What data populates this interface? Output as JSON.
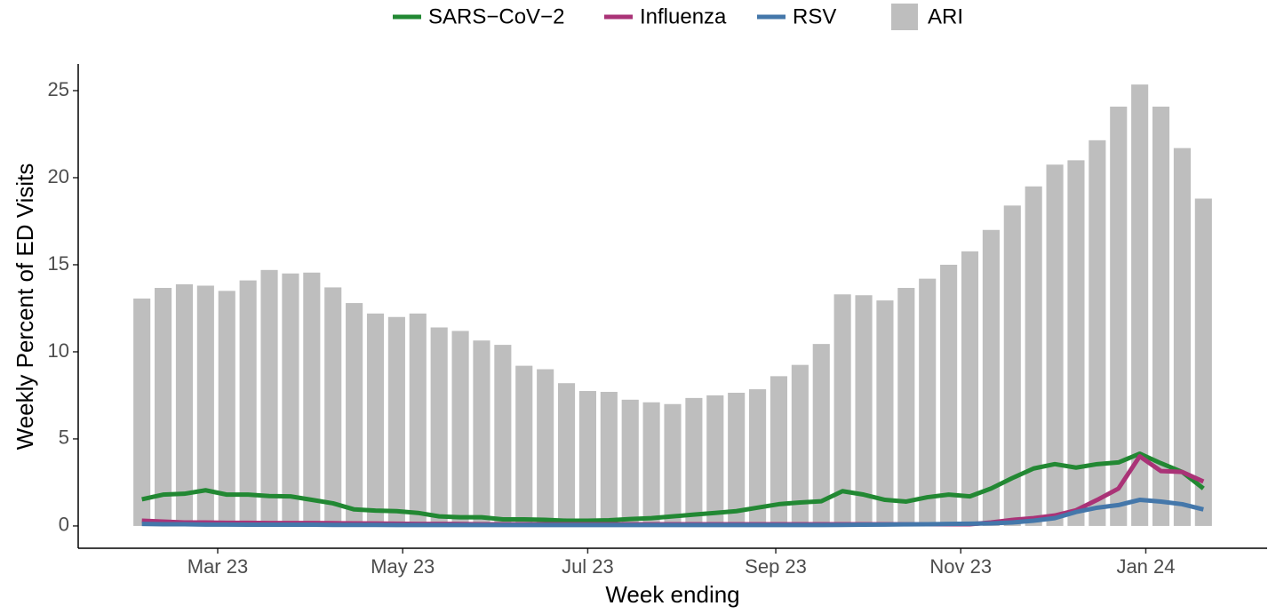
{
  "chart_data": {
    "type": "combo",
    "x_label": "Week ending",
    "y_label": "Weekly Percent of ED Visits",
    "categories": [
      null,
      null,
      null,
      null,
      null,
      null,
      null,
      null,
      null,
      null,
      null,
      null,
      null,
      null,
      null,
      null,
      null,
      null,
      null,
      null,
      null,
      null,
      null,
      null,
      null,
      null,
      null,
      null,
      null,
      null,
      null,
      null,
      null,
      null,
      null,
      null,
      null,
      null,
      null,
      null,
      null,
      null,
      null,
      null,
      null,
      null,
      null,
      null,
      null,
      null,
      null
    ],
    "xlim": [
      -3,
      53
    ],
    "xticks": [
      {
        "value": 3.571,
        "label": "Mar 23"
      },
      {
        "value": 12.286,
        "label": "May 23"
      },
      {
        "value": 21,
        "label": "Jul 23"
      },
      {
        "value": 29.857,
        "label": "Sep 23"
      },
      {
        "value": 38.571,
        "label": "Nov 23"
      },
      {
        "value": 47.286,
        "label": "Jan 24"
      }
    ],
    "ylim": [
      -1.28,
      26.53
    ],
    "yticks": [
      0,
      5,
      10,
      15,
      20,
      25
    ],
    "legend": "top",
    "bars": {
      "name": "ARI",
      "color": "#bebebe",
      "values": [
        13.06,
        13.67,
        13.88,
        13.8,
        13.5,
        14.1,
        14.7,
        14.5,
        14.55,
        13.7,
        12.8,
        12.2,
        12.0,
        12.2,
        11.4,
        11.2,
        10.65,
        10.4,
        9.2,
        9.0,
        8.2,
        7.75,
        7.7,
        7.25,
        7.1,
        7.0,
        7.35,
        7.5,
        7.65,
        7.85,
        8.6,
        9.25,
        10.45,
        13.3,
        13.25,
        12.95,
        13.67,
        14.2,
        15.0,
        15.77,
        17.0,
        18.4,
        19.5,
        20.75,
        21.0,
        22.15,
        24.08,
        25.35,
        24.08,
        21.7,
        18.8
      ]
    },
    "series": [
      {
        "name": "SARS−CoV−2",
        "color": "#228833",
        "values": [
          1.53,
          1.8,
          1.85,
          2.05,
          1.8,
          1.8,
          1.72,
          1.7,
          1.5,
          1.3,
          0.95,
          0.88,
          0.85,
          0.75,
          0.55,
          0.5,
          0.5,
          0.38,
          0.38,
          0.35,
          0.3,
          0.3,
          0.33,
          0.4,
          0.45,
          0.55,
          0.65,
          0.75,
          0.85,
          1.05,
          1.25,
          1.35,
          1.42,
          2.0,
          1.8,
          1.5,
          1.4,
          1.65,
          1.8,
          1.7,
          2.15,
          2.75,
          3.3,
          3.55,
          3.35,
          3.55,
          3.65,
          4.15,
          3.6,
          3.1,
          2.15
        ]
      },
      {
        "name": "Influenza",
        "color": "#aa3377",
        "values": [
          0.3,
          0.25,
          0.2,
          0.2,
          0.18,
          0.18,
          0.17,
          0.17,
          0.17,
          0.16,
          0.15,
          0.14,
          0.13,
          0.12,
          0.12,
          0.11,
          0.1,
          0.1,
          0.1,
          0.1,
          0.1,
          0.1,
          0.1,
          0.1,
          0.1,
          0.1,
          0.1,
          0.1,
          0.1,
          0.1,
          0.1,
          0.1,
          0.1,
          0.1,
          0.1,
          0.1,
          0.1,
          0.1,
          0.1,
          0.1,
          0.2,
          0.35,
          0.45,
          0.6,
          0.9,
          1.5,
          2.15,
          4.0,
          3.15,
          3.1,
          2.55
        ]
      },
      {
        "name": "RSV",
        "color": "#4477aa",
        "values": [
          0.12,
          0.1,
          0.1,
          0.08,
          0.08,
          0.07,
          0.07,
          0.07,
          0.07,
          0.06,
          0.06,
          0.06,
          0.05,
          0.05,
          0.05,
          0.05,
          0.05,
          0.05,
          0.05,
          0.05,
          0.05,
          0.05,
          0.05,
          0.05,
          0.05,
          0.05,
          0.05,
          0.05,
          0.05,
          0.05,
          0.05,
          0.05,
          0.05,
          0.06,
          0.07,
          0.08,
          0.09,
          0.1,
          0.12,
          0.13,
          0.15,
          0.2,
          0.3,
          0.45,
          0.8,
          1.05,
          1.2,
          1.5,
          1.4,
          1.25,
          0.95
        ]
      }
    ]
  }
}
